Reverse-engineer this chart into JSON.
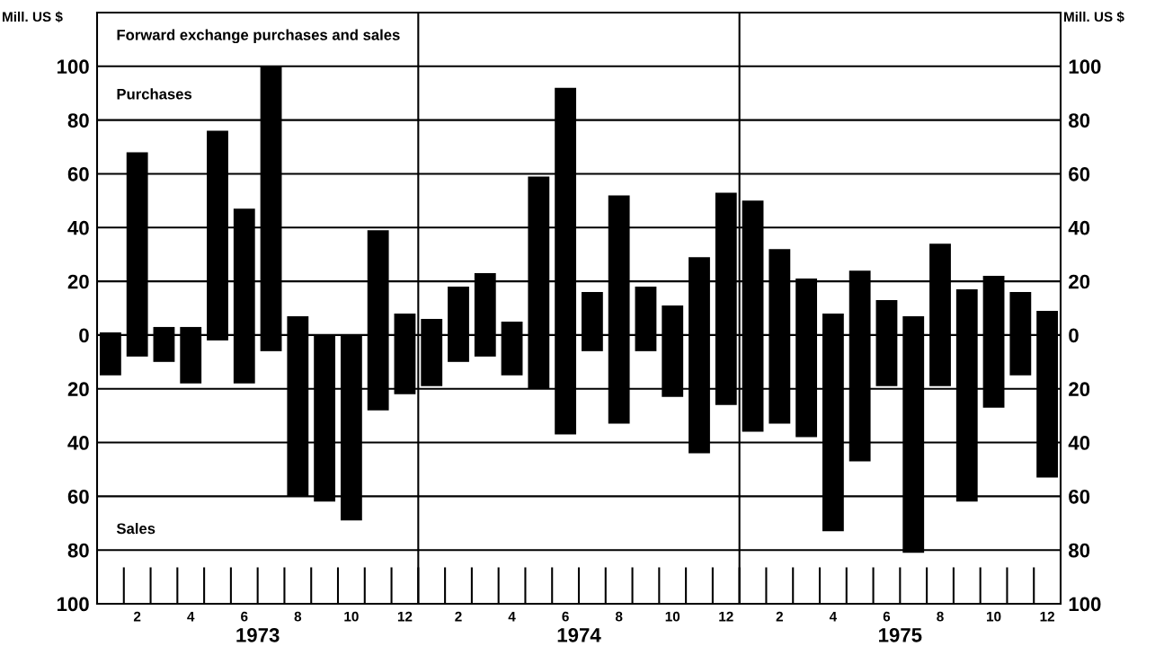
{
  "chart_data": {
    "type": "bar",
    "stacked": true,
    "title": "Forward exchange purchases and sales",
    "ylabel": "Mill. US $",
    "y2label": "Mill. US $",
    "categories": [
      null,
      "2",
      null,
      "4",
      null,
      "6",
      null,
      "8",
      null,
      "10",
      null,
      "12",
      null,
      "2",
      null,
      "4",
      null,
      "6",
      null,
      "8",
      null,
      "10",
      null,
      "12",
      null,
      "2",
      null,
      "4",
      null,
      "6",
      null,
      "8",
      null,
      "10",
      null,
      "12"
    ],
    "ylim": [
      -100,
      120
    ],
    "yticks": [
      {
        "value": -100,
        "label": "100"
      },
      {
        "value": -80,
        "label": "80"
      },
      {
        "value": -60,
        "label": "60"
      },
      {
        "value": -40,
        "label": "40"
      },
      {
        "value": -20,
        "label": "20"
      },
      0,
      20,
      40,
      60,
      80,
      100
    ],
    "y2lim": [
      -100,
      120
    ],
    "y2ticks": [
      {
        "value": -100,
        "label": "100"
      },
      {
        "value": -80,
        "label": "80"
      },
      {
        "value": -60,
        "label": "60"
      },
      {
        "value": -40,
        "label": "40"
      },
      {
        "value": -20,
        "label": "20"
      },
      0,
      20,
      40,
      60,
      80,
      100
    ],
    "grid": "y",
    "series": [
      {
        "color": "#000000",
        "values": [
          1,
          68,
          3,
          3,
          76,
          47,
          100,
          7,
          0,
          0,
          39,
          8,
          6,
          18,
          23,
          5,
          59,
          92,
          16,
          52,
          18,
          11,
          29,
          53,
          50,
          32,
          21,
          8,
          24,
          13,
          7,
          34,
          17,
          22,
          16,
          9
        ]
      },
      {
        "color": "#000000",
        "values": [
          -15,
          -8,
          -10,
          -18,
          -2,
          -18,
          -6,
          -60,
          -62,
          -69,
          -28,
          -22,
          -19,
          -10,
          -8,
          -15,
          -20,
          -37,
          -6,
          -33,
          -6,
          -23,
          -44,
          -26,
          -36,
          -33,
          -38,
          -73,
          -47,
          -19,
          -81,
          -19,
          -62,
          -27,
          -15,
          -53
        ]
      }
    ],
    "annotations": [
      "Purchases",
      "Sales",
      "1973",
      "1974",
      "1975"
    ]
  }
}
